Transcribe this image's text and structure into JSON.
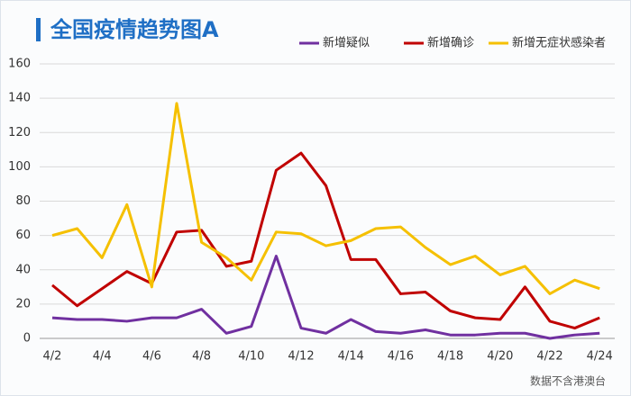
{
  "chart_data": {
    "type": "line",
    "title": "全国疫情趋势图A",
    "note": "数据不含港澳台",
    "categories": [
      "4/2",
      null,
      "4/4",
      null,
      "4/6",
      null,
      "4/8",
      null,
      "4/10",
      null,
      "4/12",
      null,
      "4/14",
      null,
      "4/16",
      null,
      "4/18",
      null,
      "4/20",
      null,
      "4/22",
      null,
      "4/24"
    ],
    "series": [
      {
        "name": "新增疑似",
        "color": "#7030a0",
        "values": [
          12,
          11,
          11,
          10,
          12,
          12,
          17,
          3,
          7,
          48,
          6,
          3,
          11,
          4,
          3,
          5,
          2,
          2,
          3,
          3,
          0,
          2,
          3
        ]
      },
      {
        "name": "新增确诊",
        "color": "#c00000",
        "values": [
          31,
          19,
          29,
          39,
          32,
          62,
          63,
          42,
          45,
          98,
          108,
          89,
          46,
          46,
          26,
          27,
          16,
          12,
          11,
          30,
          10,
          6,
          12
        ]
      },
      {
        "name": "新增无症状感染者",
        "color": "#f5c000",
        "values": [
          60,
          64,
          47,
          78,
          30,
          137,
          56,
          47,
          34,
          62,
          61,
          54,
          57,
          64,
          65,
          53,
          43,
          48,
          37,
          42,
          26,
          34,
          29
        ]
      }
    ],
    "ylim": [
      0,
      160
    ],
    "yticks": [
      0,
      20,
      40,
      60,
      80,
      100,
      120,
      140,
      160
    ],
    "grid": true
  }
}
